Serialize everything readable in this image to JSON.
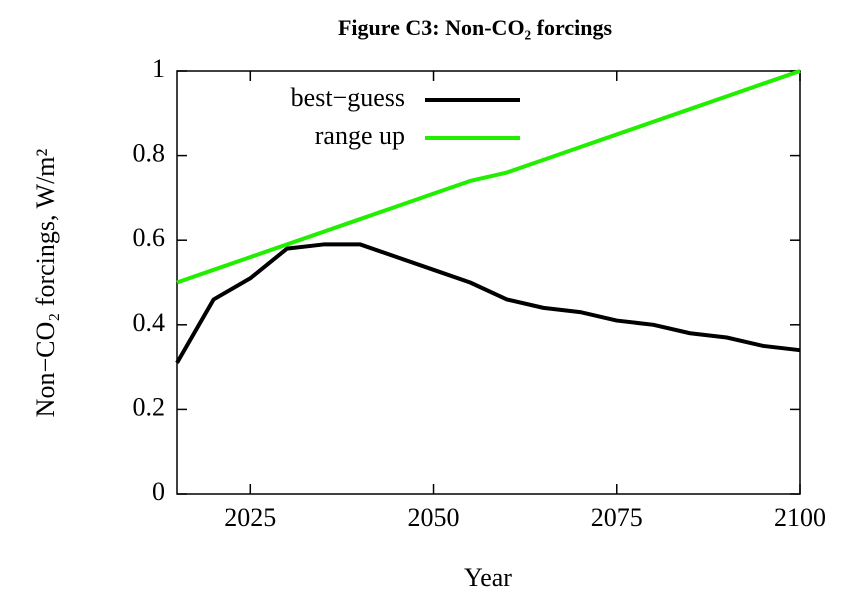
{
  "chart_data": {
    "type": "line",
    "title": "Figure C3: Non-CO₂ forcings",
    "x_label": "Year",
    "y_label": "Non−CO₂ forcings, W/m²",
    "x": [
      2015,
      2020,
      2025,
      2030,
      2035,
      2040,
      2045,
      2050,
      2055,
      2060,
      2065,
      2070,
      2075,
      2080,
      2085,
      2090,
      2095,
      2100
    ],
    "series": [
      {
        "name": "best−guess",
        "color": "#000000",
        "values": [
          0.31,
          0.46,
          0.51,
          0.58,
          0.59,
          0.59,
          0.56,
          0.53,
          0.5,
          0.46,
          0.44,
          0.43,
          0.41,
          0.4,
          0.38,
          0.37,
          0.35,
          0.34
        ]
      },
      {
        "name": "range up",
        "color": "#22ee00",
        "values": [
          0.5,
          0.53,
          0.56,
          0.59,
          0.62,
          0.65,
          0.68,
          0.71,
          0.74,
          0.76,
          0.79,
          0.82,
          0.85,
          0.88,
          0.91,
          0.94,
          0.97,
          1.0
        ]
      }
    ],
    "xlim": [
      2015,
      2100
    ],
    "xticks": [
      2025,
      2050,
      2075,
      2100
    ],
    "ylim": [
      0,
      1
    ],
    "yticks": [
      0,
      0.2,
      0.4,
      0.6,
      0.8,
      1
    ],
    "legend": "top-left"
  }
}
